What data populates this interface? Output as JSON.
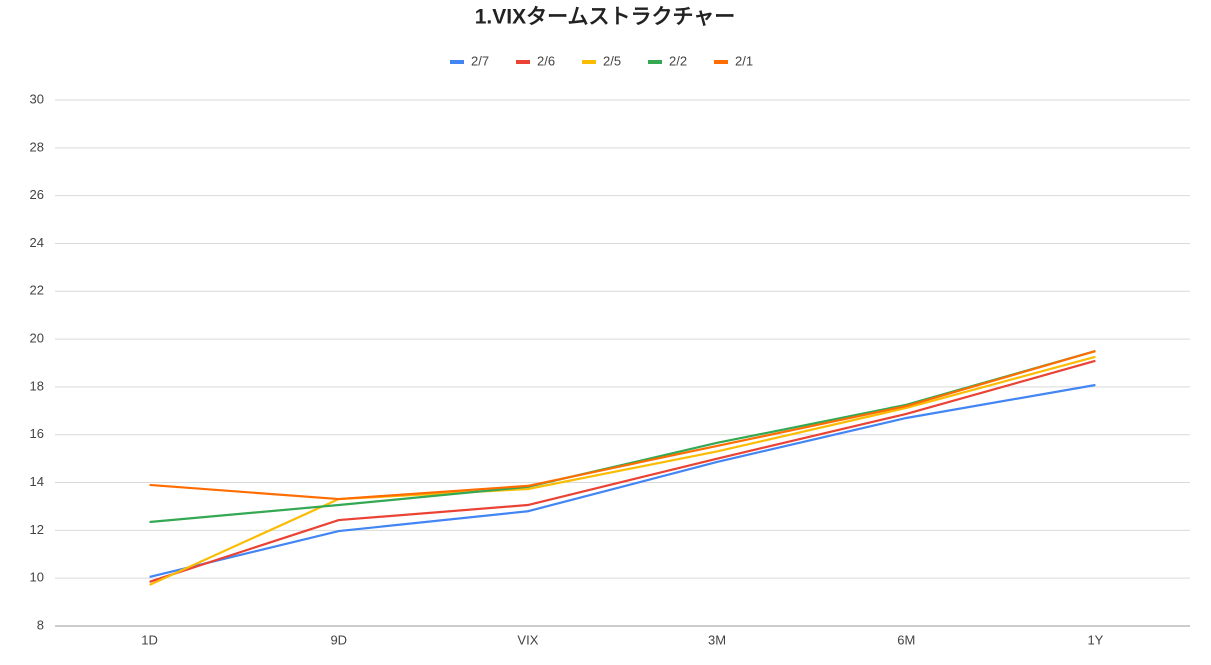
{
  "chart_data": {
    "type": "line",
    "title": "1.VIXタームストラクチャー",
    "categories": [
      "1D",
      "9D",
      "VIX",
      "3M",
      "6M",
      "1Y"
    ],
    "series": [
      {
        "name": "2/7",
        "color": "#4285f4",
        "values": [
          10.05,
          11.97,
          12.8,
          14.86,
          16.7,
          18.08
        ]
      },
      {
        "name": "2/6",
        "color": "#ea4335",
        "values": [
          9.85,
          12.43,
          13.06,
          15.0,
          16.87,
          19.09
        ]
      },
      {
        "name": "2/5",
        "color": "#fbbc04",
        "values": [
          9.72,
          13.31,
          13.73,
          15.3,
          17.12,
          19.26
        ]
      },
      {
        "name": "2/2",
        "color": "#34a853",
        "values": [
          12.35,
          13.06,
          13.82,
          15.66,
          17.25,
          19.5
        ]
      },
      {
        "name": "2/1",
        "color": "#ff6d01",
        "values": [
          13.9,
          13.31,
          13.86,
          15.53,
          17.2,
          19.5
        ]
      }
    ],
    "ylim": [
      8,
      30
    ],
    "yticks": [
      8,
      10,
      12,
      14,
      16,
      18,
      20,
      22,
      24,
      26,
      28,
      30
    ],
    "grid": true,
    "legend": "top"
  }
}
